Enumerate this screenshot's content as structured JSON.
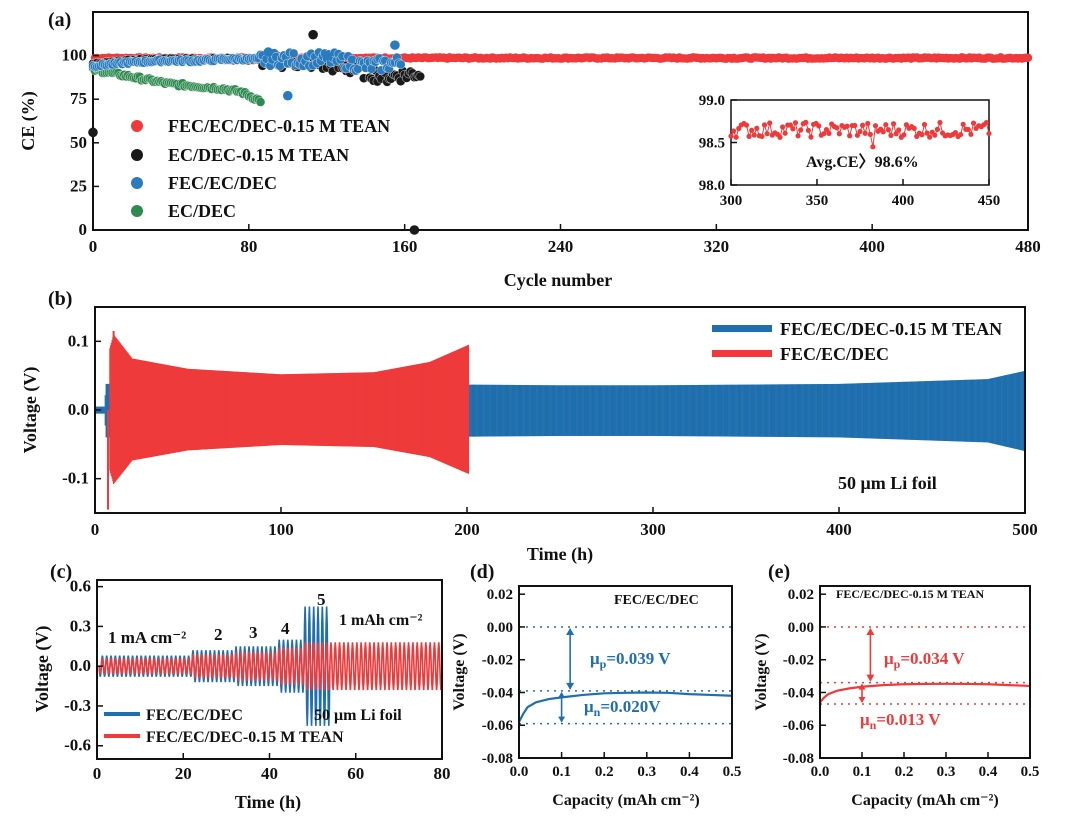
{
  "colors": {
    "red": "#ee3a3a",
    "black": "#1a1a1a",
    "blue": "#2a7bbd",
    "green": "#2e8a4f",
    "darkblue": "#1f6fae",
    "axis": "#111111"
  },
  "chart_data": [
    {
      "panel": "(a)",
      "type": "scatter",
      "xlabel": "Cycle number",
      "ylabel": "CE (%)",
      "xlim": [
        0,
        480
      ],
      "ylim": [
        0,
        125
      ],
      "xticks": [
        0,
        80,
        160,
        240,
        320,
        400,
        480
      ],
      "yticks": [
        0,
        25,
        50,
        75,
        100
      ],
      "series": [
        {
          "name": "FEC/EC/DEC-0.15 M TEAN",
          "color": "red",
          "x_range": [
            1,
            480
          ],
          "y_mean": 98.6
        },
        {
          "name": "EC/DEC-0.15 M TEAN",
          "color": "black",
          "points": [
            [
              0,
              56
            ],
            [
              113,
              112
            ],
            [
              165,
              0
            ]
          ],
          "trend_x": [
            0,
            168
          ],
          "trend_y": [
            95,
            97,
            98,
            98,
            98,
            97,
            96,
            93,
            88,
            90
          ]
        },
        {
          "name": "FEC/EC/DEC",
          "color": "blue",
          "points": [
            [
              90,
              102
            ],
            [
              100,
              77
            ],
            [
              120,
              100
            ],
            [
              155,
              106
            ]
          ],
          "trend_x": [
            0,
            158
          ],
          "trend_y": [
            94,
            96,
            97,
            97,
            98,
            98,
            98,
            98,
            94,
            96
          ]
        },
        {
          "name": "EC/DEC",
          "color": "green",
          "trend_x": [
            0,
            86
          ],
          "trend_y": [
            92,
            90,
            88,
            86,
            84,
            83,
            82,
            81,
            79,
            74
          ]
        }
      ],
      "inset": {
        "xlim": [
          300,
          450
        ],
        "ylim": [
          98.0,
          99.0
        ],
        "xticks": [
          300,
          350,
          400,
          450
        ],
        "yticks": [
          "98.0",
          "98.5",
          "99.0"
        ],
        "annotation": "Avg.CE〉98.6%",
        "y_mean": 98.65
      }
    },
    {
      "panel": "(b)",
      "type": "line",
      "xlabel": "Time (h)",
      "ylabel": "Voltage (V)",
      "xlim": [
        0,
        500
      ],
      "ylim": [
        -0.15,
        0.15
      ],
      "xticks": [
        0,
        100,
        200,
        300,
        400,
        500
      ],
      "yticks": [
        "-0.1",
        "0.0",
        "0.1"
      ],
      "annotation": "50 μm Li foil",
      "series": [
        {
          "name": "FEC/EC/DEC-0.15 M TEAN",
          "color": "darkblue",
          "envelope_t": [
            0,
            5,
            6,
            100,
            200,
            250,
            300,
            400,
            480,
            500
          ],
          "envelope_v": [
            0.005,
            0.005,
            0.038,
            0.037,
            0.037,
            0.036,
            0.036,
            0.038,
            0.045,
            0.057
          ]
        },
        {
          "name": "FEC/EC/DEC",
          "color": "red",
          "envelope_t": [
            8,
            10,
            20,
            50,
            100,
            150,
            180,
            201
          ],
          "envelope_v": [
            0.09,
            0.11,
            0.075,
            0.06,
            0.052,
            0.055,
            0.07,
            0.095
          ],
          "spikes": [
            [
              10,
              0.115
            ],
            [
              7,
              -0.145
            ]
          ]
        }
      ]
    },
    {
      "panel": "(c)",
      "type": "line",
      "xlabel": "Time (h)",
      "ylabel": "Voltage (V)",
      "xlim": [
        0,
        80
      ],
      "ylim": [
        -0.7,
        0.65
      ],
      "xticks": [
        0,
        20,
        40,
        60,
        80
      ],
      "yticks": [
        "-0.6",
        "-0.3",
        "0.0",
        "0.3",
        "0.6"
      ],
      "rate_labels": [
        "1 mA cm⁻²",
        "2",
        "3",
        "4",
        "5"
      ],
      "annotations": [
        "1 mAh cm⁻²",
        "50 μm Li foil"
      ],
      "series": [
        {
          "name": "FEC/EC/DEC",
          "color": "darkblue",
          "segments_t": [
            0,
            22,
            32,
            42,
            48,
            54
          ],
          "amplitudes": [
            0.08,
            0.12,
            0.15,
            0.2,
            0.45
          ]
        },
        {
          "name": "FEC/EC/DEC-0.15 M TEAN",
          "color": "red",
          "segments_t": [
            0,
            22,
            32,
            42,
            48,
            80
          ],
          "amplitudes": [
            0.06,
            0.09,
            0.11,
            0.14,
            0.18,
            0.06
          ]
        }
      ]
    },
    {
      "panel": "(d)",
      "type": "line",
      "title": "FEC/EC/DEC",
      "xlabel": "Capacity (mAh cm⁻²)",
      "ylabel": "Voltage (V)",
      "xlim": [
        0.0,
        0.5
      ],
      "ylim": [
        -0.08,
        0.025
      ],
      "xticks": [
        "0.0",
        "0.1",
        "0.2",
        "0.3",
        "0.4",
        "0.5"
      ],
      "yticks": [
        "-0.08",
        "-0.06",
        "-0.04",
        "-0.02",
        "0.00",
        "0.02"
      ],
      "x": [
        0.0,
        0.01,
        0.02,
        0.04,
        0.07,
        0.1,
        0.15,
        0.2,
        0.25,
        0.3,
        0.35,
        0.4,
        0.45,
        0.5
      ],
      "y": [
        -0.058,
        -0.053,
        -0.049,
        -0.046,
        -0.044,
        -0.043,
        -0.0415,
        -0.0405,
        -0.0402,
        -0.04,
        -0.0402,
        -0.041,
        -0.0415,
        -0.042
      ],
      "ref_lines": [
        0.0,
        -0.039,
        -0.059
      ],
      "mu_p": "μ",
      "mu_p_sub": "p",
      "mu_p_value": "=0.039 V",
      "mu_n": "μ",
      "mu_n_sub": "n",
      "mu_n_value": "=0.020V"
    },
    {
      "panel": "(e)",
      "type": "line",
      "title": "FEC/EC/DEC-0.15 M TEAN",
      "xlabel": "Capacity (mAh cm⁻²)",
      "ylabel": "Voltage (V)",
      "xlim": [
        0.0,
        0.5
      ],
      "ylim": [
        -0.08,
        0.025
      ],
      "xticks": [
        "0.0",
        "0.1",
        "0.2",
        "0.3",
        "0.4",
        "0.5"
      ],
      "yticks": [
        "-0.08",
        "-0.06",
        "-0.04",
        "-0.02",
        "0.00",
        "0.02"
      ],
      "x": [
        0.0,
        0.01,
        0.02,
        0.04,
        0.07,
        0.1,
        0.15,
        0.2,
        0.25,
        0.3,
        0.35,
        0.4,
        0.45,
        0.5
      ],
      "y": [
        -0.046,
        -0.043,
        -0.041,
        -0.039,
        -0.0375,
        -0.0365,
        -0.0355,
        -0.035,
        -0.0348,
        -0.0347,
        -0.0348,
        -0.035,
        -0.0355,
        -0.036
      ],
      "ref_lines": [
        0.0,
        -0.034,
        -0.047
      ],
      "mu_p": "μ",
      "mu_p_sub": "p",
      "mu_p_value": "=0.034 V",
      "mu_n": "μ",
      "mu_n_sub": "n",
      "mu_n_value": "=0.013 V"
    }
  ]
}
